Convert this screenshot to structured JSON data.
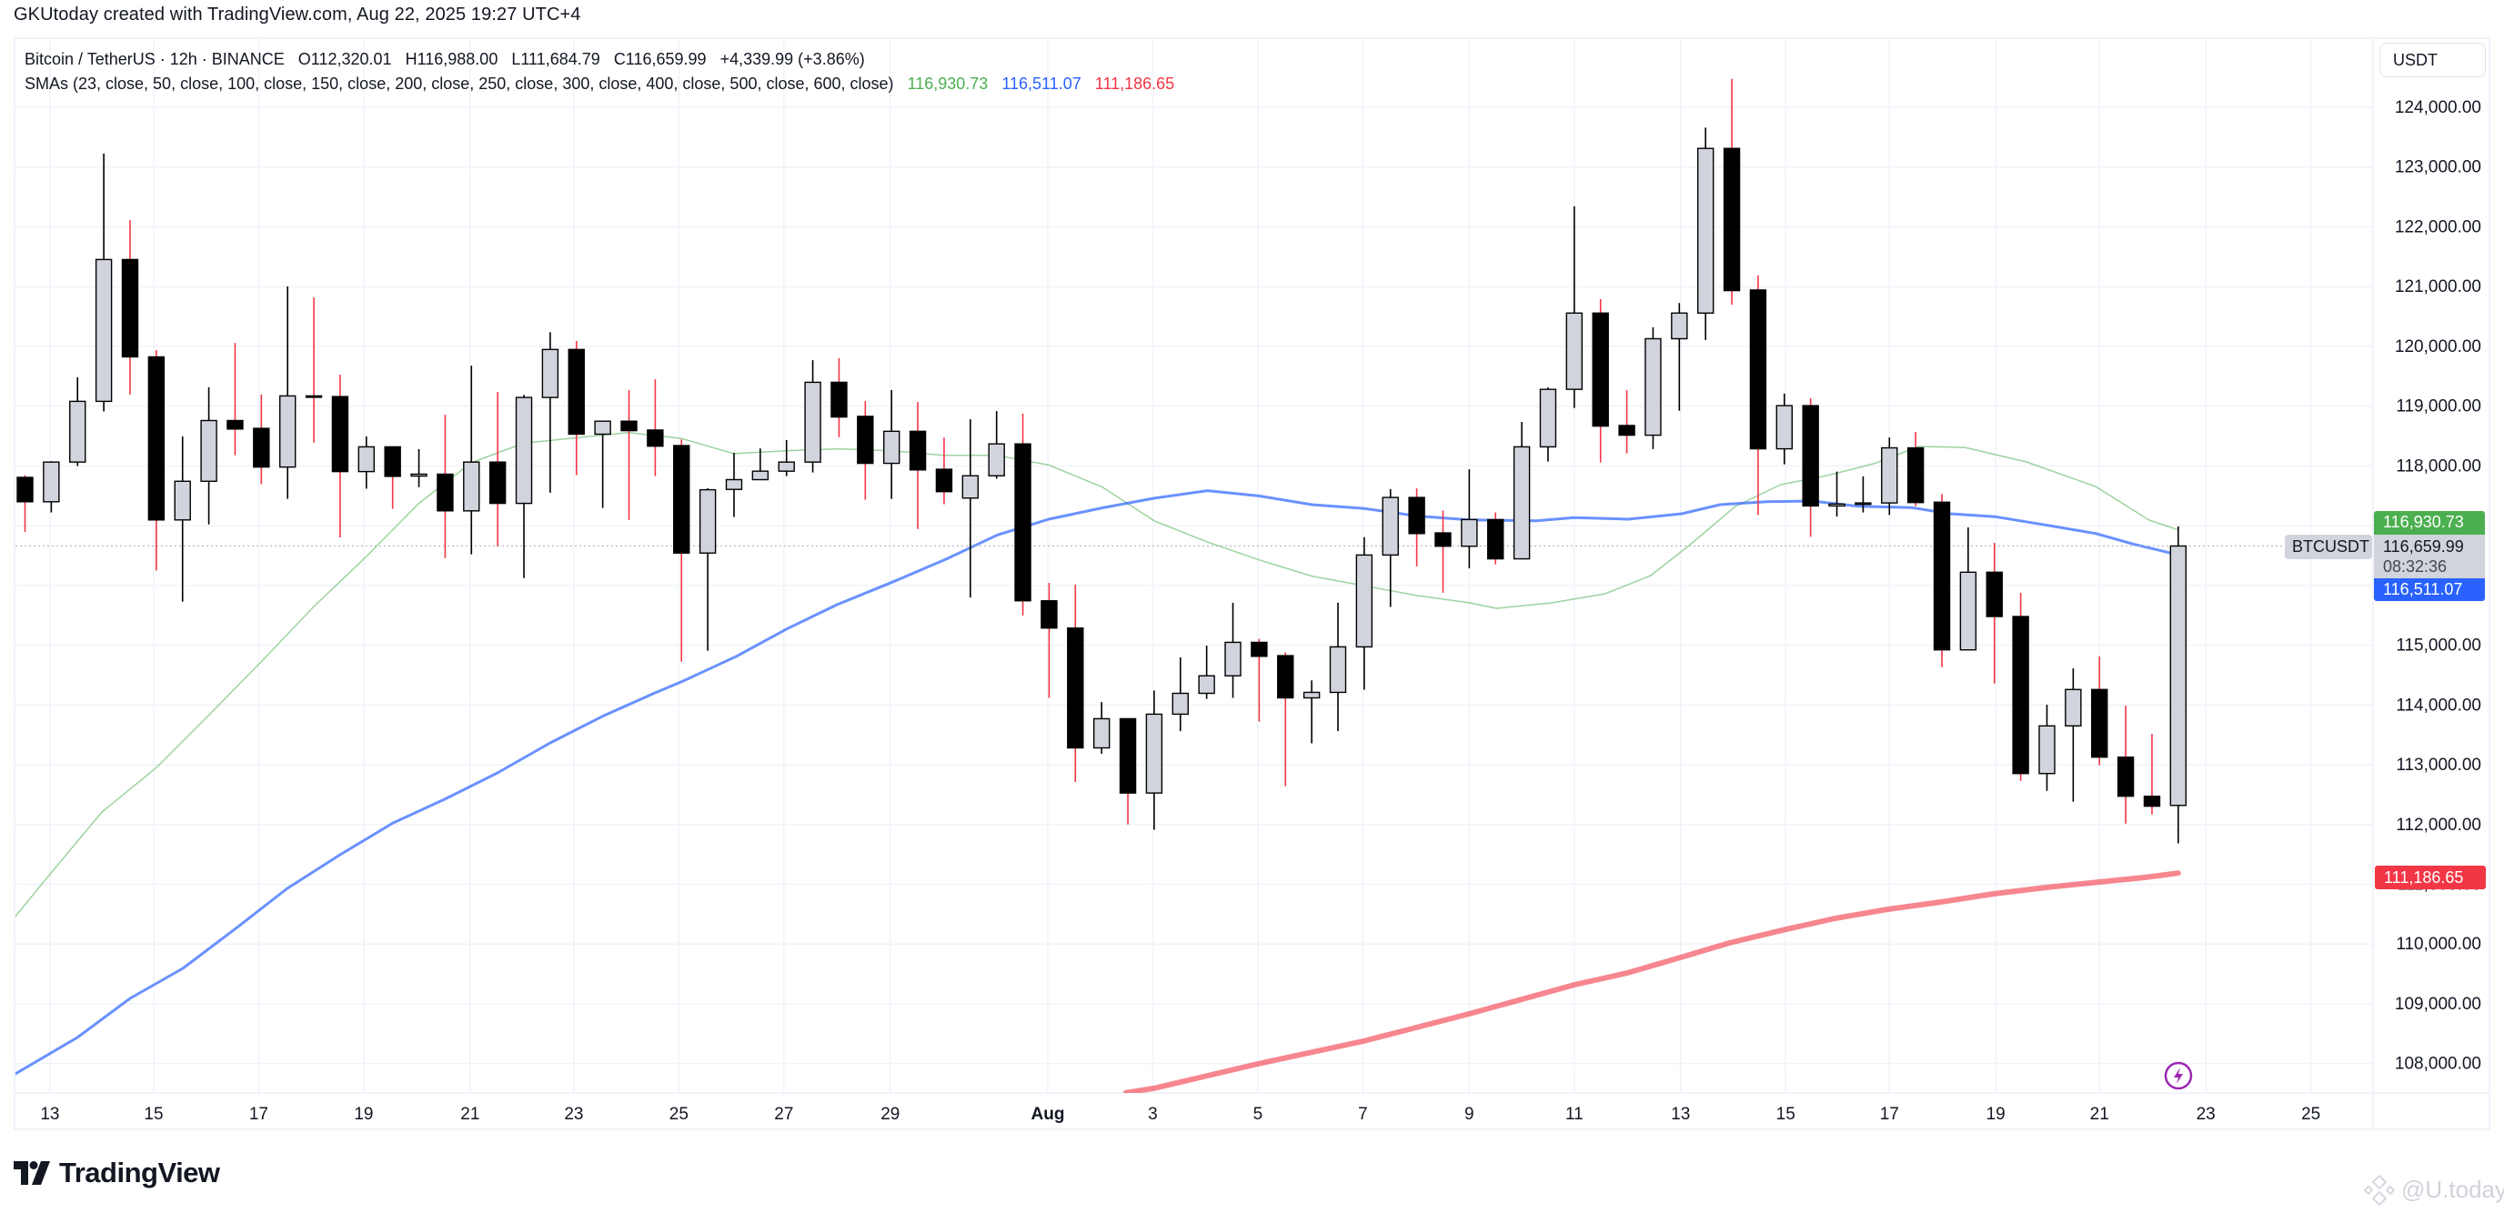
{
  "credit": "GKUtoday created with TradingView.com, Aug 22, 2025 19:27 UTC+4",
  "legend": {
    "symbol_line": "Bitcoin / TetherUS · 12h · BINANCE",
    "open": "O112,320.01",
    "high": "H116,988.00",
    "low": "L111,684.79",
    "close": "C116,659.99",
    "change": "+4,339.99 (+3.86%)",
    "sma_label": "SMAs (23, close, 50, close, 100, close, 150, close, 200, close, 250, close, 300, close, 400, close, 500, close, 600, close)",
    "sma_values": [
      {
        "value": "116,930.73",
        "color": "#4caf50"
      },
      {
        "value": "116,511.07",
        "color": "#2962ff"
      },
      {
        "value": "111,186.65",
        "color": "#f23645"
      }
    ]
  },
  "currency_button": "USDT",
  "price_labels": {
    "symbol": "BTCUSDT",
    "sma23": "116,930.73",
    "last_price": "116,659.99",
    "countdown": "08:32:36",
    "sma50": "116,511.07",
    "sma200": "111,186.65"
  },
  "branding": {
    "logo_text": "TradingView",
    "watermark": "@U.today"
  },
  "colors": {
    "bull_body": "#d1d4dc",
    "bear_body": "#000000",
    "bull_wick": "#000000",
    "bear_wick": "#f23645",
    "sma23": "#4caf50",
    "sma50": "#2962ff",
    "sma200": "#f23645",
    "label_green": "#4caf50",
    "label_blue": "#2962ff",
    "label_red": "#f23645",
    "label_grey": "#d1d4dc",
    "grid": "#f0f3fa",
    "accent_icon": "#9c27b0"
  },
  "chart_data": {
    "type": "candlestick",
    "title": "Bitcoin / TetherUS · 12h · BINANCE",
    "xlabel": "",
    "ylabel": "USDT",
    "ylim": [
      107500,
      124800
    ],
    "grid": true,
    "legend_position": "top-left",
    "y_ticks": [
      "124,000.00",
      "123,000.00",
      "122,000.00",
      "121,000.00",
      "120,000.00",
      "119,000.00",
      "118,000.00",
      "117,000.00",
      "116,000.00",
      "115,000.00",
      "114,000.00",
      "113,000.00",
      "112,000.00",
      "111,000.00",
      "110,000.00",
      "109,000.00",
      "108,000.00"
    ],
    "x_ticks": [
      {
        "label": "13",
        "idx": 1.95
      },
      {
        "label": "15",
        "idx": 5.9
      },
      {
        "label": "17",
        "idx": 9.9
      },
      {
        "label": "19",
        "idx": 13.9
      },
      {
        "label": "21",
        "idx": 17.95
      },
      {
        "label": "23",
        "idx": 21.9
      },
      {
        "label": "25",
        "idx": 25.9
      },
      {
        "label": "27",
        "idx": 29.9
      },
      {
        "label": "29",
        "idx": 33.95
      },
      {
        "label": "Aug",
        "idx": 39.95,
        "bold": true
      },
      {
        "label": "3",
        "idx": 43.95
      },
      {
        "label": "5",
        "idx": 47.95
      },
      {
        "label": "7",
        "idx": 51.95
      },
      {
        "label": "9",
        "idx": 56.0
      },
      {
        "label": "11",
        "idx": 60.0
      },
      {
        "label": "13",
        "idx": 64.05
      },
      {
        "label": "15",
        "idx": 68.05
      },
      {
        "label": "17",
        "idx": 72.0
      },
      {
        "label": "19",
        "idx": 76.05
      },
      {
        "label": "21",
        "idx": 80.0
      },
      {
        "label": "23",
        "idx": 84.05
      },
      {
        "label": "25",
        "idx": 88.05
      }
    ],
    "candles_ohlc": [
      [
        117808,
        117846,
        116895,
        117400
      ],
      [
        117400,
        118080,
        117221,
        118064
      ],
      [
        118064,
        119481,
        117998,
        119080
      ],
      [
        119080,
        123226,
        118911,
        121453
      ],
      [
        121453,
        122112,
        119194,
        119824
      ],
      [
        119824,
        119938,
        116249,
        117096
      ],
      [
        117096,
        118493,
        115727,
        117743
      ],
      [
        117743,
        119314,
        117020,
        118759
      ],
      [
        118759,
        120058,
        118178,
        118617
      ],
      [
        118628,
        119194,
        117694,
        117981
      ],
      [
        117981,
        121003,
        117449,
        119171
      ],
      [
        119171,
        120819,
        118389,
        119160
      ],
      [
        119160,
        119526,
        116802,
        117905
      ],
      [
        117905,
        118493,
        117618,
        118319
      ],
      [
        118319,
        118330,
        117282,
        117825
      ],
      [
        117830,
        118281,
        117645,
        117862
      ],
      [
        117862,
        118856,
        116460,
        117248
      ],
      [
        117248,
        119678,
        116521,
        118064
      ],
      [
        118064,
        119237,
        116656,
        117373
      ],
      [
        117373,
        119188,
        116124,
        119145
      ],
      [
        119145,
        120236,
        117552,
        119948
      ],
      [
        119948,
        120090,
        117846,
        118531
      ],
      [
        118531,
        118760,
        117297,
        118748
      ],
      [
        118748,
        119270,
        117096,
        118590
      ],
      [
        118600,
        119449,
        117829,
        118330
      ],
      [
        118340,
        118444,
        114724,
        116542
      ],
      [
        116542,
        117628,
        114907,
        117601
      ],
      [
        117607,
        118220,
        117145,
        117770
      ],
      [
        117770,
        118292,
        117760,
        117912
      ],
      [
        117912,
        118433,
        117829,
        118064
      ],
      [
        118064,
        119769,
        117890,
        119399
      ],
      [
        119399,
        119803,
        118482,
        118818
      ],
      [
        118829,
        119084,
        117434,
        118043
      ],
      [
        118043,
        119270,
        117449,
        118579
      ],
      [
        118579,
        119069,
        116944,
        117933
      ],
      [
        117944,
        118476,
        117358,
        117569
      ],
      [
        117462,
        118780,
        115798,
        117835
      ],
      [
        117835,
        118917,
        117787,
        118368
      ],
      [
        118368,
        118873,
        115498,
        115743
      ],
      [
        115743,
        116042,
        114119,
        115287
      ],
      [
        115287,
        116015,
        112711,
        113282
      ],
      [
        113282,
        114049,
        113184,
        113770
      ],
      [
        113770,
        113780,
        112000,
        112527
      ],
      [
        112527,
        114243,
        111913,
        113846
      ],
      [
        113846,
        114797,
        113564,
        114195
      ],
      [
        114195,
        114993,
        114102,
        114488
      ],
      [
        114488,
        115710,
        114119,
        115048
      ],
      [
        115048,
        115107,
        113721,
        114814
      ],
      [
        114825,
        114879,
        112641,
        114119
      ],
      [
        114119,
        114412,
        113358,
        114211
      ],
      [
        114211,
        115710,
        113564,
        114972
      ],
      [
        114972,
        116808,
        114254,
        116509
      ],
      [
        116509,
        117612,
        115640,
        117472
      ],
      [
        117472,
        117624,
        116319,
        116868
      ],
      [
        116879,
        117254,
        115879,
        116656
      ],
      [
        116656,
        117943,
        116286,
        117102
      ],
      [
        117102,
        117221,
        116352,
        116445
      ],
      [
        116445,
        118736,
        116440,
        118319
      ],
      [
        118319,
        119313,
        118074,
        119281
      ],
      [
        119281,
        122345,
        118970,
        120557
      ],
      [
        120557,
        120791,
        118058,
        118666
      ],
      [
        118676,
        119270,
        118210,
        118514
      ],
      [
        118514,
        120318,
        118281,
        120128
      ],
      [
        120128,
        120726,
        118923,
        120557
      ],
      [
        120557,
        123659,
        120107,
        123312
      ],
      [
        123312,
        124475,
        120699,
        120933
      ],
      [
        120943,
        121187,
        117178,
        118286
      ],
      [
        118286,
        119209,
        118026,
        119008
      ],
      [
        119008,
        119133,
        116813,
        117330
      ],
      [
        117330,
        117905,
        117151,
        117362
      ],
      [
        117376,
        117825,
        117221,
        117380
      ],
      [
        117380,
        118476,
        117178,
        118302
      ],
      [
        118302,
        118569,
        117326,
        117387
      ],
      [
        117393,
        117530,
        114633,
        114922
      ],
      [
        114922,
        116971,
        115815,
        116221
      ],
      [
        116221,
        116712,
        114359,
        115480
      ],
      [
        115480,
        115876,
        112731,
        112853
      ],
      [
        112853,
        114005,
        112564,
        113650
      ],
      [
        113650,
        114613,
        112381,
        114259
      ],
      [
        114259,
        114811,
        112990,
        113127
      ],
      [
        113127,
        113989,
        112016,
        112473
      ],
      [
        112473,
        113518,
        112168,
        112306
      ],
      [
        112320.01,
        116988.0,
        111684.79,
        116659.99
      ]
    ],
    "series": [
      {
        "name": "SMA 23",
        "color": "#4caf50",
        "width": 1.5,
        "last": "116,930.73",
        "points": [
          [
            0.57,
            110429
          ],
          [
            1.99,
            111190
          ],
          [
            3.93,
            112209
          ],
          [
            6.01,
            112954
          ],
          [
            8.01,
            113836
          ],
          [
            9.99,
            114719
          ],
          [
            12.0,
            115647
          ],
          [
            14.0,
            116484
          ],
          [
            15.98,
            117367
          ],
          [
            17.99,
            118051
          ],
          [
            18.99,
            118219
          ],
          [
            19.99,
            118378
          ],
          [
            22.0,
            118471
          ],
          [
            23.98,
            118558
          ],
          [
            25.99,
            118460
          ],
          [
            27.99,
            118205
          ],
          [
            29.98,
            118254
          ],
          [
            31.98,
            118286
          ],
          [
            33.99,
            118254
          ],
          [
            35.99,
            118178
          ],
          [
            37.99,
            118178
          ],
          [
            39.99,
            118015
          ],
          [
            42.01,
            117650
          ],
          [
            44.01,
            117079
          ],
          [
            46.03,
            116726
          ],
          [
            47.99,
            116428
          ],
          [
            50.01,
            116156
          ],
          [
            52.02,
            115993
          ],
          [
            54.02,
            115830
          ],
          [
            56.0,
            115710
          ],
          [
            57.03,
            115617
          ],
          [
            59.14,
            115709
          ],
          [
            61.18,
            115861
          ],
          [
            62.91,
            116165
          ],
          [
            64.37,
            116667
          ],
          [
            66.13,
            117321
          ],
          [
            67.86,
            117687
          ],
          [
            69.63,
            117839
          ],
          [
            71.4,
            118036
          ],
          [
            73.13,
            118325
          ],
          [
            74.86,
            118310
          ],
          [
            77.22,
            118067
          ],
          [
            79.85,
            117656
          ],
          [
            81.89,
            117093
          ],
          [
            83.0,
            116930.73
          ]
        ]
      },
      {
        "name": "SMA 50",
        "color": "#2962ff",
        "width": 3,
        "last": "116,511.07",
        "points": [
          [
            0.57,
            107812
          ],
          [
            2.99,
            108436
          ],
          [
            5.0,
            109090
          ],
          [
            7.01,
            109592
          ],
          [
            8.98,
            110246
          ],
          [
            10.99,
            110931
          ],
          [
            13.0,
            111494
          ],
          [
            15.01,
            112026
          ],
          [
            16.98,
            112422
          ],
          [
            18.99,
            112863
          ],
          [
            21.0,
            113365
          ],
          [
            22.98,
            113808
          ],
          [
            24.99,
            114203
          ],
          [
            25.99,
            114386
          ],
          [
            28.1,
            114815
          ],
          [
            30.01,
            115272
          ],
          [
            31.92,
            115678
          ],
          [
            33.99,
            116048
          ],
          [
            36.07,
            116439
          ],
          [
            38.03,
            116845
          ],
          [
            39.99,
            117108
          ],
          [
            42.01,
            117297
          ],
          [
            44.01,
            117460
          ],
          [
            46.03,
            117586
          ],
          [
            47.99,
            117498
          ],
          [
            50.01,
            117352
          ],
          [
            52.02,
            117286
          ],
          [
            54.02,
            117161
          ],
          [
            56.0,
            117096
          ],
          [
            58.55,
            117082
          ],
          [
            60.0,
            117134
          ],
          [
            62.05,
            117108
          ],
          [
            64.09,
            117199
          ],
          [
            65.55,
            117352
          ],
          [
            67.31,
            117402
          ],
          [
            69.05,
            117412
          ],
          [
            70.81,
            117326
          ],
          [
            72.86,
            117301
          ],
          [
            74.31,
            117199
          ],
          [
            76.04,
            117149
          ],
          [
            77.81,
            117021
          ],
          [
            79.85,
            116869
          ],
          [
            81.3,
            116692
          ],
          [
            83.0,
            116511.07
          ]
        ]
      },
      {
        "name": "SMA 200",
        "color": "#f23645",
        "width": 6,
        "last": "111,186.65",
        "points": [
          [
            42.93,
            107513
          ],
          [
            44.02,
            107589
          ],
          [
            47.95,
            107995
          ],
          [
            51.97,
            108375
          ],
          [
            55.99,
            108832
          ],
          [
            60.01,
            109319
          ],
          [
            62.02,
            109516
          ],
          [
            64.04,
            109775
          ],
          [
            65.9,
            110018
          ],
          [
            68.06,
            110246
          ],
          [
            69.93,
            110429
          ],
          [
            71.94,
            110581
          ],
          [
            73.95,
            110703
          ],
          [
            75.96,
            110840
          ],
          [
            77.97,
            110946
          ],
          [
            79.98,
            111038
          ],
          [
            81.71,
            111114
          ],
          [
            83.0,
            111186.65
          ]
        ]
      }
    ]
  }
}
